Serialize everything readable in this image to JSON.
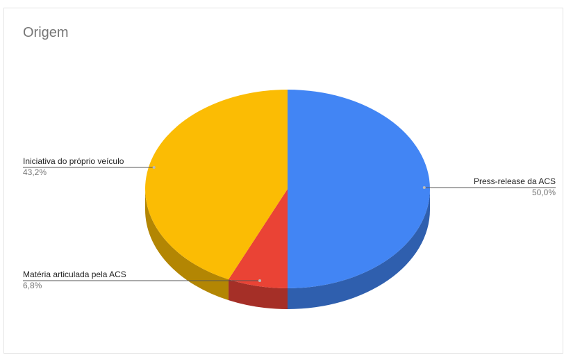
{
  "chart_data": {
    "type": "pie",
    "title": "Origem",
    "three_d": true,
    "slices": [
      {
        "label": "Press-release da ACS",
        "value": 50.0,
        "percent_label": "50,0%",
        "color": "#4285f4",
        "side_color": "#2f5fae"
      },
      {
        "label": "Matéria articulada pela ACS",
        "value": 6.8,
        "percent_label": "6,8%",
        "color": "#ea4335",
        "side_color": "#a52f27"
      },
      {
        "label": "Iniciativa do próprio veículo",
        "value": 43.2,
        "percent_label": "43,2%",
        "color": "#fbbc04",
        "side_color": "#b38603"
      }
    ],
    "legend": "labels-with-leader-lines"
  }
}
